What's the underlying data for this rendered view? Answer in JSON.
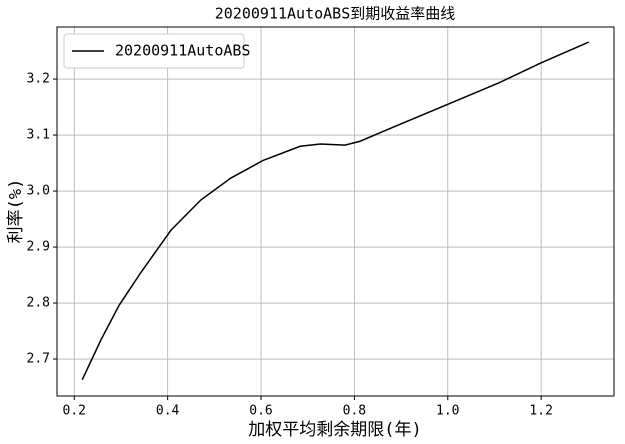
{
  "chart_data": {
    "type": "line",
    "title": "20200911AutoABS到期收益率曲线",
    "xlabel": "加权平均剩余期限(年)",
    "ylabel": "利率(%)",
    "series": [
      {
        "name": "20200911AutoABS",
        "color": "#000000",
        "x": [
          0.217,
          0.257,
          0.296,
          0.343,
          0.407,
          0.471,
          0.535,
          0.605,
          0.684,
          0.727,
          0.78,
          0.812,
          0.897,
          1.0,
          1.109,
          1.2,
          1.302
        ],
        "values": [
          2.663,
          2.734,
          2.796,
          2.855,
          2.93,
          2.984,
          3.023,
          3.055,
          3.08,
          3.084,
          3.082,
          3.089,
          3.119,
          3.155,
          3.193,
          3.229,
          3.266
        ]
      }
    ],
    "xlim": [
      0.163,
      1.356
    ],
    "ylim": [
      2.634,
      3.293
    ],
    "xticks": [
      0.2,
      0.4,
      0.6,
      0.8,
      {
        "value": 1,
        "label": "1.0"
      },
      1.2
    ],
    "yticks": [
      2.7,
      2.8,
      2.9,
      {
        "value": 3,
        "label": "3.0"
      },
      3.1,
      3.2
    ],
    "grid": true,
    "legend": "upper left"
  }
}
